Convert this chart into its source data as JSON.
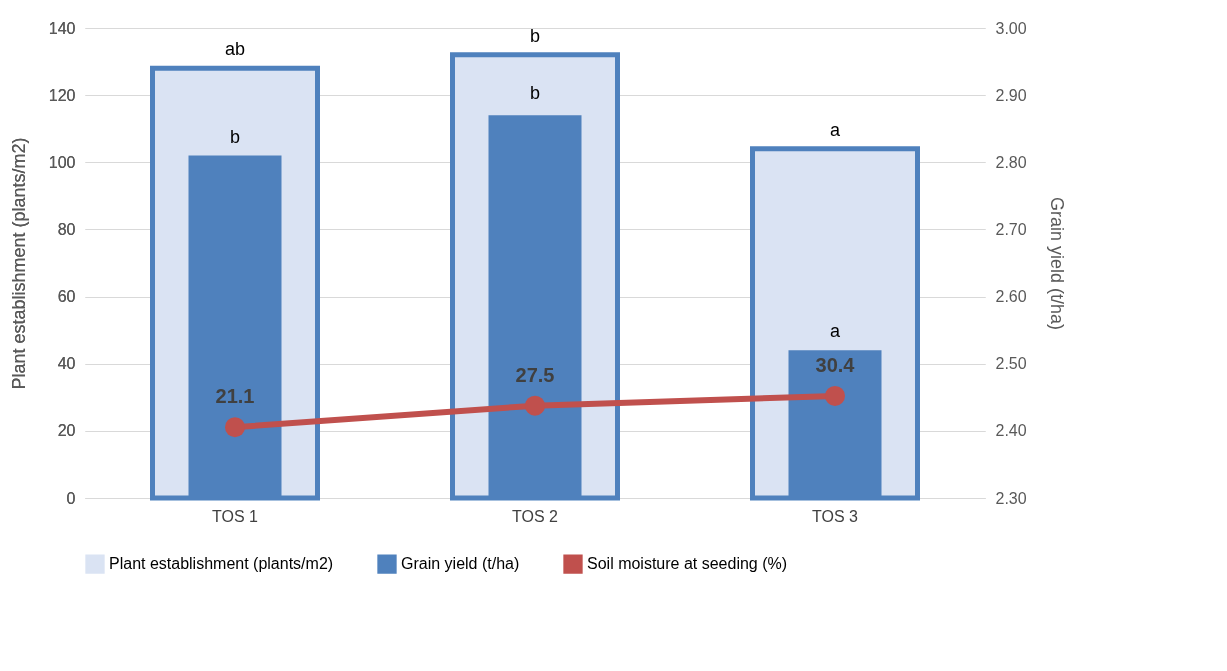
{
  "chart_data": {
    "type": "bar",
    "categories": [
      "TOS 1",
      "TOS 2",
      "TOS 3"
    ],
    "ylabel": "Plant establishment (plants/m2)",
    "y2label": "Grain yield (t/ha)",
    "ylim": [
      0,
      140
    ],
    "yticks": [
      0,
      20,
      40,
      60,
      80,
      100,
      120,
      140
    ],
    "y2lim": [
      2.3,
      3.0
    ],
    "y2ticks": [
      {
        "value": 2.3,
        "label": "2.30"
      },
      {
        "value": 2.4,
        "label": "2.40"
      },
      {
        "value": 2.5,
        "label": "2.50"
      },
      {
        "value": 2.6,
        "label": "2.60"
      },
      {
        "value": 2.7,
        "label": "2.70"
      },
      {
        "value": 2.8,
        "label": "2.80"
      },
      {
        "value": 2.9,
        "label": "2.90"
      },
      {
        "value": 3.0,
        "label": "3.00"
      }
    ],
    "grid": "y",
    "legend": "bottom",
    "series": [
      {
        "name": "Plant establishment (plants/m2)",
        "color": "#dae3f3",
        "values": [
          128,
          132,
          104
        ]
      },
      {
        "name": "Grain yield (t/ha)",
        "axis": "y2",
        "color": "#4f81bd",
        "values": [
          2.81,
          2.87,
          2.52
        ]
      },
      {
        "name": "Soil moisture at seeding (%)",
        "type": "line",
        "color": "#c0504d",
        "marker": "circle",
        "values": [
          21.1,
          27.5,
          30.4
        ],
        "value_labels": [
          "21.1",
          "27.5",
          "30.4"
        ]
      }
    ],
    "annotations": [
      {
        "text": "ab",
        "x": "TOS 1",
        "y": 128
      },
      {
        "text": "b",
        "x": "TOS 2",
        "y": 132
      },
      {
        "text": "a",
        "x": "TOS 3",
        "y": 104
      },
      {
        "text": "b",
        "x": "TOS 1",
        "y": 102
      },
      {
        "text": "b",
        "x": "TOS 2",
        "y": 115
      },
      {
        "text": "a",
        "x": "TOS 3",
        "y": 44
      }
    ]
  }
}
